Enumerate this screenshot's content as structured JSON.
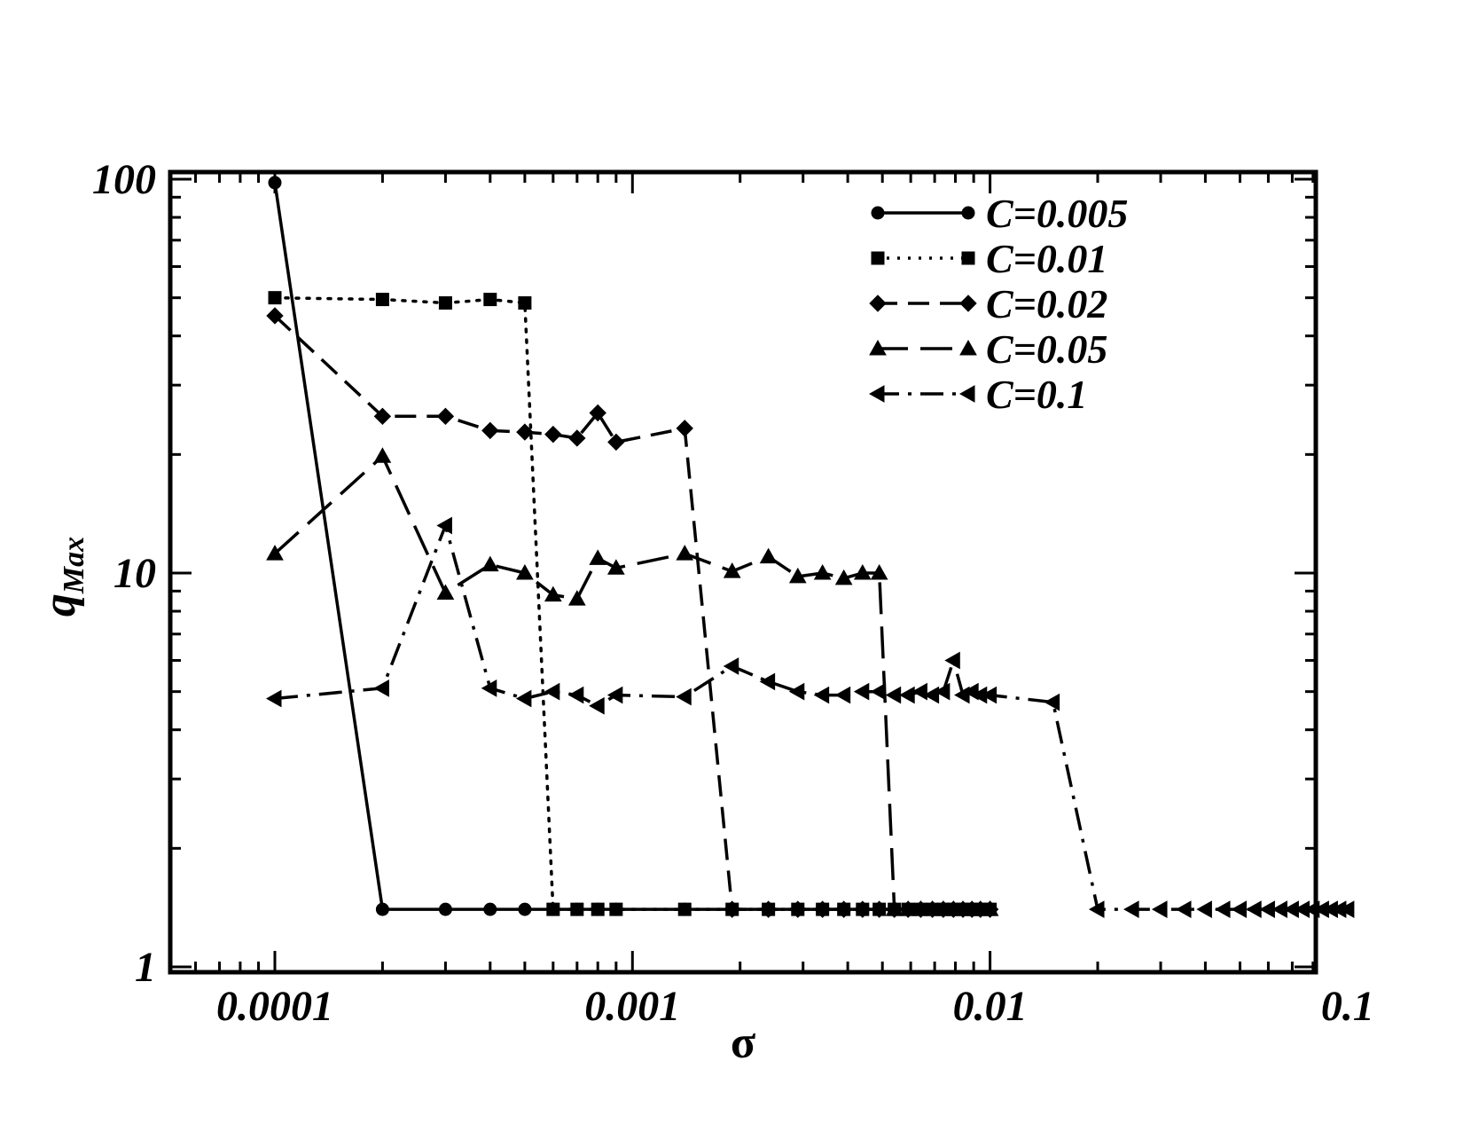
{
  "chart_data": {
    "type": "line",
    "xlabel": "σ",
    "ylabel": {
      "main": "q",
      "sub": "Max"
    },
    "x_scale": "log",
    "y_scale": "log",
    "xlim": [
      5e-05,
      0.1
    ],
    "ylim": [
      1,
      100
    ],
    "x_tick_labels": [
      {
        "value": 0.0001,
        "label": "0.0001"
      },
      {
        "value": 0.001,
        "label": "0.001"
      },
      {
        "value": 0.01,
        "label": "0.01"
      },
      {
        "value": 0.1,
        "label": "0.1"
      }
    ],
    "y_tick_labels": [
      {
        "value": 1,
        "label": "1"
      },
      {
        "value": 10,
        "label": "10"
      },
      {
        "value": 100,
        "label": "100"
      }
    ],
    "grid": false,
    "legend_position": "top-right",
    "series": [
      {
        "name": "C=0.005",
        "line_style": "solid",
        "marker": "circle",
        "points": [
          [
            0.0001,
            98
          ],
          [
            0.0002,
            1.4
          ],
          [
            0.0003,
            1.4
          ],
          [
            0.0004,
            1.4
          ],
          [
            0.0005,
            1.4
          ],
          [
            0.0006,
            1.4
          ],
          [
            0.0007,
            1.4
          ],
          [
            0.0008,
            1.4
          ],
          [
            0.0009,
            1.4
          ],
          [
            0.0014,
            1.4
          ],
          [
            0.0019,
            1.4
          ],
          [
            0.0024,
            1.4
          ],
          [
            0.0029,
            1.4
          ],
          [
            0.0034,
            1.4
          ],
          [
            0.0039,
            1.4
          ],
          [
            0.0044,
            1.4
          ],
          [
            0.0049,
            1.4
          ],
          [
            0.0054,
            1.4
          ],
          [
            0.0059,
            1.4
          ],
          [
            0.0064,
            1.4
          ],
          [
            0.0069,
            1.4
          ],
          [
            0.0074,
            1.4
          ],
          [
            0.0079,
            1.4
          ],
          [
            0.0084,
            1.4
          ],
          [
            0.0089,
            1.4
          ],
          [
            0.0094,
            1.4
          ],
          [
            0.01,
            1.4
          ]
        ]
      },
      {
        "name": "C=0.01",
        "line_style": "dotted",
        "marker": "square",
        "points": [
          [
            0.0001,
            50
          ],
          [
            0.0002,
            49.5
          ],
          [
            0.0003,
            48.5
          ],
          [
            0.0004,
            49.5
          ],
          [
            0.0005,
            48.5
          ],
          [
            0.0006,
            1.4
          ],
          [
            0.0007,
            1.4
          ],
          [
            0.0008,
            1.4
          ],
          [
            0.0009,
            1.4
          ],
          [
            0.0014,
            1.4
          ],
          [
            0.0019,
            1.4
          ],
          [
            0.0024,
            1.4
          ],
          [
            0.0029,
            1.4
          ],
          [
            0.0034,
            1.4
          ],
          [
            0.0039,
            1.4
          ],
          [
            0.0044,
            1.4
          ],
          [
            0.0049,
            1.4
          ],
          [
            0.0054,
            1.4
          ],
          [
            0.0059,
            1.4
          ],
          [
            0.0064,
            1.4
          ],
          [
            0.0069,
            1.4
          ],
          [
            0.0074,
            1.4
          ],
          [
            0.0079,
            1.4
          ],
          [
            0.0084,
            1.4
          ],
          [
            0.0089,
            1.4
          ],
          [
            0.0094,
            1.4
          ],
          [
            0.01,
            1.4
          ]
        ]
      },
      {
        "name": "C=0.02",
        "line_style": "dashed",
        "marker": "diamond",
        "points": [
          [
            0.0001,
            45
          ],
          [
            0.0002,
            25
          ],
          [
            0.0003,
            25
          ],
          [
            0.0004,
            23
          ],
          [
            0.0005,
            22.8
          ],
          [
            0.0006,
            22.5
          ],
          [
            0.0007,
            22
          ],
          [
            0.0008,
            25.5
          ],
          [
            0.0009,
            21.5
          ],
          [
            0.0014,
            23.3
          ],
          [
            0.0019,
            1.4
          ],
          [
            0.0024,
            1.4
          ],
          [
            0.0029,
            1.4
          ],
          [
            0.0034,
            1.4
          ],
          [
            0.0039,
            1.4
          ],
          [
            0.0044,
            1.4
          ],
          [
            0.0049,
            1.4
          ],
          [
            0.0054,
            1.4
          ],
          [
            0.0059,
            1.4
          ],
          [
            0.0064,
            1.4
          ],
          [
            0.0069,
            1.4
          ],
          [
            0.0074,
            1.4
          ],
          [
            0.0079,
            1.4
          ],
          [
            0.0084,
            1.4
          ],
          [
            0.0089,
            1.4
          ],
          [
            0.0094,
            1.4
          ],
          [
            0.01,
            1.4
          ]
        ]
      },
      {
        "name": "C=0.05",
        "line_style": "long-dashed",
        "marker": "triangle-up",
        "points": [
          [
            0.0001,
            11.2
          ],
          [
            0.0002,
            19.8
          ],
          [
            0.0003,
            8.9
          ],
          [
            0.0004,
            10.5
          ],
          [
            0.0005,
            10.0
          ],
          [
            0.0006,
            8.8
          ],
          [
            0.0007,
            8.6
          ],
          [
            0.0008,
            10.9
          ],
          [
            0.0009,
            10.3
          ],
          [
            0.0014,
            11.2
          ],
          [
            0.0019,
            10.1
          ],
          [
            0.0024,
            11.0
          ],
          [
            0.0029,
            9.8
          ],
          [
            0.0034,
            10.0
          ],
          [
            0.0039,
            9.7
          ],
          [
            0.0044,
            10.0
          ],
          [
            0.0049,
            10.0
          ],
          [
            0.0054,
            1.4
          ],
          [
            0.0059,
            1.4
          ],
          [
            0.0064,
            1.4
          ],
          [
            0.0069,
            1.4
          ],
          [
            0.0074,
            1.4
          ],
          [
            0.0079,
            1.4
          ],
          [
            0.0084,
            1.4
          ],
          [
            0.0089,
            1.4
          ],
          [
            0.0094,
            1.4
          ],
          [
            0.01,
            1.4
          ]
        ]
      },
      {
        "name": "C=0.1",
        "line_style": "dash-dot",
        "marker": "triangle-left",
        "points": [
          [
            0.0001,
            4.8
          ],
          [
            0.0002,
            5.1
          ],
          [
            0.0003,
            13.2
          ],
          [
            0.0004,
            5.1
          ],
          [
            0.0005,
            4.8
          ],
          [
            0.0006,
            5.0
          ],
          [
            0.0007,
            4.9
          ],
          [
            0.0008,
            4.6
          ],
          [
            0.0009,
            4.9
          ],
          [
            0.0014,
            4.85
          ],
          [
            0.0019,
            5.8
          ],
          [
            0.0024,
            5.3
          ],
          [
            0.0029,
            5.0
          ],
          [
            0.0034,
            4.9
          ],
          [
            0.0039,
            4.9
          ],
          [
            0.0044,
            5.0
          ],
          [
            0.0049,
            5.0
          ],
          [
            0.0054,
            4.9
          ],
          [
            0.0059,
            4.9
          ],
          [
            0.0064,
            5.0
          ],
          [
            0.0069,
            4.9
          ],
          [
            0.0074,
            5.0
          ],
          [
            0.0079,
            6.0
          ],
          [
            0.0084,
            4.9
          ],
          [
            0.0089,
            5.0
          ],
          [
            0.0094,
            4.9
          ],
          [
            0.01,
            4.9
          ],
          [
            0.015,
            4.7
          ],
          [
            0.02,
            1.4
          ],
          [
            0.025,
            1.4
          ],
          [
            0.03,
            1.4
          ],
          [
            0.035,
            1.4
          ],
          [
            0.04,
            1.4
          ],
          [
            0.045,
            1.4
          ],
          [
            0.05,
            1.4
          ],
          [
            0.055,
            1.4
          ],
          [
            0.06,
            1.4
          ],
          [
            0.065,
            1.4
          ],
          [
            0.07,
            1.4
          ],
          [
            0.075,
            1.4
          ],
          [
            0.08,
            1.4
          ],
          [
            0.085,
            1.4
          ],
          [
            0.09,
            1.4
          ],
          [
            0.095,
            1.4
          ],
          [
            0.1,
            1.4
          ]
        ]
      }
    ]
  }
}
